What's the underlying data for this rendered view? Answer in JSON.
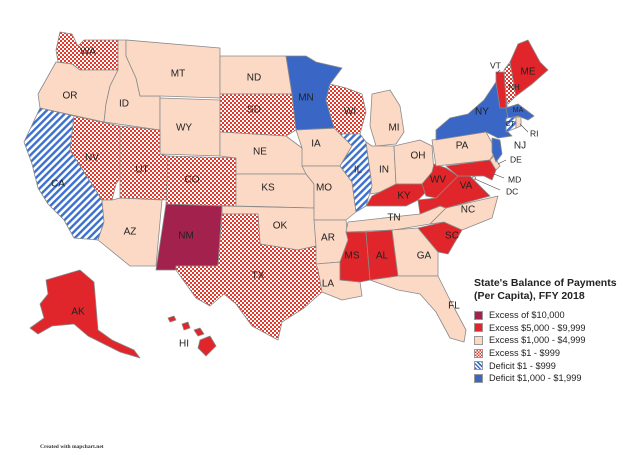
{
  "title_line1": "State's Balance of Payments",
  "title_line2": "(Per Capita), FFY 2018",
  "credit": "Created with mapchart.net",
  "legend": [
    {
      "id": "c1",
      "label": "Excess of $10,000",
      "color": "#a3224d",
      "pattern": "solid"
    },
    {
      "id": "c2",
      "label": "Excess $5,000 - $9,999",
      "color": "#e0262a",
      "pattern": "solid"
    },
    {
      "id": "c3",
      "label": "Excess $1,000 - $4,999",
      "color": "#fbd9c5",
      "pattern": "solid"
    },
    {
      "id": "c4",
      "label": "Excess $1 - $999",
      "color": "#e2392c",
      "pattern": "checker"
    },
    {
      "id": "c5",
      "label": "Deficit $1 - $999",
      "color": "#3b6fd0",
      "pattern": "stripes"
    },
    {
      "id": "c6",
      "label": "Deficit $1,000 - $1,999",
      "color": "#3a66c6",
      "pattern": "solid"
    }
  ],
  "states": {
    "WA": {
      "label": "WA",
      "category": "c4"
    },
    "OR": {
      "label": "OR",
      "category": "c3"
    },
    "CA": {
      "label": "CA",
      "category": "c5"
    },
    "ID": {
      "label": "ID",
      "category": "c3"
    },
    "NV": {
      "label": "NV",
      "category": "c4"
    },
    "MT": {
      "label": "MT",
      "category": "c3"
    },
    "WY": {
      "label": "WY",
      "category": "c3"
    },
    "UT": {
      "label": "UT",
      "category": "c4"
    },
    "AZ": {
      "label": "AZ",
      "category": "c3"
    },
    "CO": {
      "label": "CO",
      "category": "c4"
    },
    "NM": {
      "label": "NM",
      "category": "c1"
    },
    "ND": {
      "label": "ND",
      "category": "c3"
    },
    "SD": {
      "label": "SD",
      "category": "c4"
    },
    "NE": {
      "label": "NE",
      "category": "c3"
    },
    "KS": {
      "label": "KS",
      "category": "c3"
    },
    "OK": {
      "label": "OK",
      "category": "c3"
    },
    "TX": {
      "label": "TX",
      "category": "c4"
    },
    "MN": {
      "label": "MN",
      "category": "c6"
    },
    "IA": {
      "label": "IA",
      "category": "c3"
    },
    "MO": {
      "label": "MO",
      "category": "c3"
    },
    "AR": {
      "label": "AR",
      "category": "c3"
    },
    "LA": {
      "label": "LA",
      "category": "c3"
    },
    "WI": {
      "label": "WI",
      "category": "c4"
    },
    "IL": {
      "label": "IL",
      "category": "c5"
    },
    "MI": {
      "label": "MI",
      "category": "c3"
    },
    "IN": {
      "label": "IN",
      "category": "c3"
    },
    "OH": {
      "label": "OH",
      "category": "c3"
    },
    "KY": {
      "label": "KY",
      "category": "c2"
    },
    "TN": {
      "label": "TN",
      "category": "c3"
    },
    "MS": {
      "label": "MS",
      "category": "c2"
    },
    "AL": {
      "label": "AL",
      "category": "c2"
    },
    "GA": {
      "label": "GA",
      "category": "c3"
    },
    "FL": {
      "label": "FL",
      "category": "c3"
    },
    "SC": {
      "label": "SC",
      "category": "c2"
    },
    "NC": {
      "label": "NC",
      "category": "c3"
    },
    "VA": {
      "label": "VA",
      "category": "c2"
    },
    "WV": {
      "label": "WV",
      "category": "c2"
    },
    "PA": {
      "label": "PA",
      "category": "c3"
    },
    "NY": {
      "label": "NY",
      "category": "c6"
    },
    "VT": {
      "label": "VT",
      "category": "c2"
    },
    "NH": {
      "label": "NH",
      "category": "c4"
    },
    "ME": {
      "label": "ME",
      "category": "c2"
    },
    "MA": {
      "label": "MA",
      "category": "c6"
    },
    "RI": {
      "label": "RI",
      "category": "c3"
    },
    "CT": {
      "label": "CT",
      "category": "c5"
    },
    "NJ": {
      "label": "NJ",
      "category": "c6"
    },
    "DE": {
      "label": "DE",
      "category": "c3"
    },
    "MD": {
      "label": "MD",
      "category": "c2"
    },
    "DC": {
      "label": "DC",
      "category": "c3"
    },
    "AK": {
      "label": "AK",
      "category": "c2"
    },
    "HI": {
      "label": "HI",
      "category": "c2"
    }
  }
}
